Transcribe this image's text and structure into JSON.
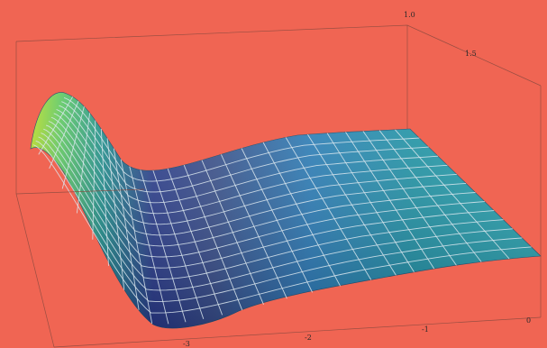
{
  "chart_data": {
    "type": "surface",
    "x_ticks": [
      "-3",
      "-2",
      "-1",
      "0"
    ],
    "y_ticks": [
      "1.0",
      "1.5"
    ],
    "colormap": "viridis",
    "grid": false,
    "background": "#f06553",
    "x_range": [
      -3.6,
      0
    ],
    "y_range": [
      0.6,
      2.0
    ],
    "surface": {
      "description_free": true,
      "peak_x": -3.5,
      "trough_x": -2.9,
      "plateau_from_x": -2.0
    }
  }
}
